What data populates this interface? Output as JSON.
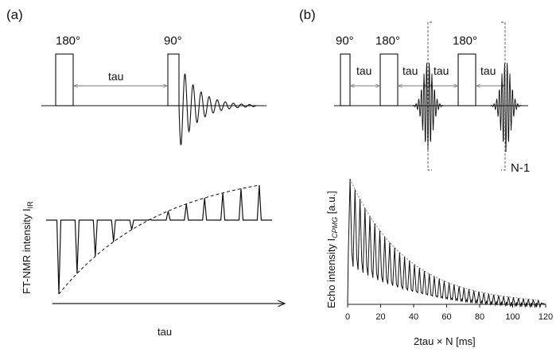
{
  "panel_a": {
    "label": "(a)",
    "pulse_180_label": "180°",
    "pulse_90_label": "90°",
    "interval_label": "tau",
    "ylabel": "FT-NMR intensity I",
    "ylabel_sub": "IR",
    "xlabel": "tau"
  },
  "panel_b": {
    "label": "(b)",
    "pulse_90_label": "90°",
    "pulse_180_label_1": "180°",
    "pulse_180_label_2": "180°",
    "interval_labels": [
      "tau",
      "tau",
      "tau",
      "tau"
    ],
    "repeat_label": "N-1",
    "ylabel": "Echo intensity I",
    "ylabel_sub": "CPMG",
    "ylabel_unit": " [a.u.]",
    "xlabel": "2tau × N [ms]",
    "xticks": [
      0,
      20,
      40,
      60,
      80,
      100,
      120
    ],
    "xlim": [
      0,
      120
    ]
  },
  "colors": {
    "ink": "#111111",
    "axis": "#222222",
    "guide": "#777777"
  }
}
